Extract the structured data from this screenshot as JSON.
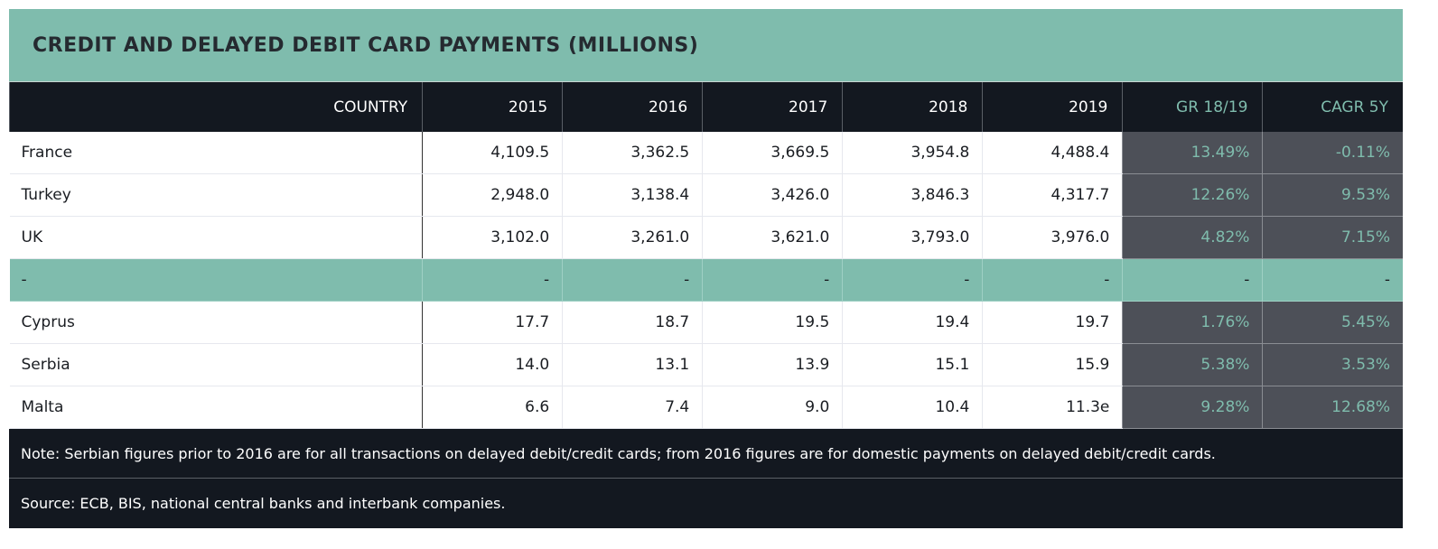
{
  "title": "CREDIT AND DELAYED DEBIT CARD PAYMENTS (MILLIONS)",
  "headers": [
    "COUNTRY",
    "2015",
    "2016",
    "2017",
    "2018",
    "2019",
    "GR 18/19",
    "CAGR 5Y"
  ],
  "rows": [
    [
      "France",
      "4,109.5",
      "3,362.5",
      "3,669.5",
      "3,954.8",
      "4,488.4",
      "13.49%",
      "-0.11%"
    ],
    [
      "Turkey",
      "2,948.0",
      "3,138.4",
      "3,426.0",
      "3,846.3",
      "4,317.7",
      "12.26%",
      "9.53%"
    ],
    [
      "UK",
      "3,102.0",
      "3,261.0",
      "3,621.0",
      "3,793.0",
      "3,976.0",
      "4.82%",
      "7.15%"
    ],
    [
      "-",
      "-",
      "-",
      "-",
      "-",
      "-",
      "-",
      "-"
    ],
    [
      "Cyprus",
      "17.7",
      "18.7",
      "19.5",
      "19.4",
      "19.7",
      "1.76%",
      "5.45%"
    ],
    [
      "Serbia",
      "14.0",
      "13.1",
      "13.9",
      "15.1",
      "15.9",
      "5.38%",
      "3.53%"
    ],
    [
      "Malta",
      "6.6",
      "7.4",
      "9.0",
      "10.4",
      "11.3e",
      "9.28%",
      "12.68%"
    ]
  ],
  "note": "Note: Serbian figures prior to 2016 are for all transactions on delayed debit/credit cards; from 2016 figures are for domestic payments on delayed debit/credit cards.",
  "source": "Source: ECB, BIS, national central banks and interbank companies.",
  "colors": {
    "accent": "#7fbcad",
    "header": "#131820",
    "growth_bg": "#4d5058"
  }
}
